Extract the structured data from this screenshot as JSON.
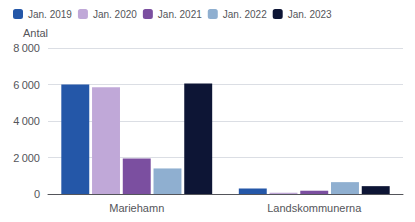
{
  "chart_data": {
    "type": "bar",
    "ylabel": "Antal",
    "categories": [
      "Mariehamn",
      "Landskommunerna"
    ],
    "series": [
      {
        "name": "Jan. 2019",
        "color": "#2457a8",
        "values": [
          6000,
          300
        ]
      },
      {
        "name": "Jan. 2020",
        "color": "#c0a8d8",
        "values": [
          5850,
          70
        ]
      },
      {
        "name": "Jan. 2021",
        "color": "#7b4fa0",
        "values": [
          1950,
          180
        ]
      },
      {
        "name": "Jan. 2022",
        "color": "#8fafd0",
        "values": [
          1400,
          650
        ]
      },
      {
        "name": "Jan. 2023",
        "color": "#0d1535",
        "values": [
          6050,
          430
        ]
      }
    ],
    "ylim": [
      0,
      8000
    ],
    "yticks": [
      0,
      {
        "value": 2000,
        "label": "2 000"
      },
      {
        "value": 4000,
        "label": "4 000"
      },
      {
        "value": 6000,
        "label": "6 000"
      },
      {
        "value": 8000,
        "label": "8 000"
      }
    ],
    "grid": true,
    "legend": "upper left"
  }
}
